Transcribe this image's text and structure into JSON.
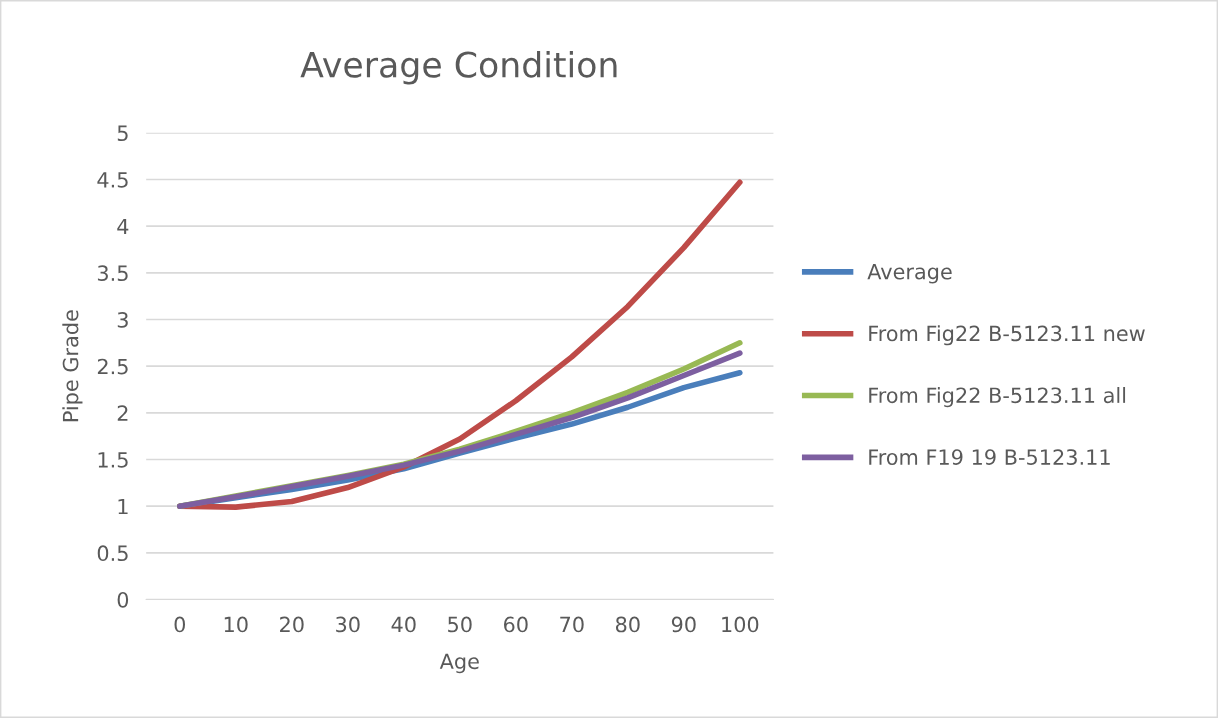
{
  "chart_data": {
    "type": "line",
    "title": "Average Condition",
    "xlabel": "Age",
    "ylabel": "Pipe Grade",
    "categories": [
      "0",
      "10",
      "20",
      "30",
      "40",
      "50",
      "60",
      "70",
      "80",
      "90",
      "100"
    ],
    "series": [
      {
        "name": "Average",
        "color": "#4a7ebb",
        "values": [
          1.0,
          1.09,
          1.18,
          1.28,
          1.4,
          1.57,
          1.73,
          1.88,
          2.06,
          2.27,
          2.43
        ]
      },
      {
        "name": "From Fig22 B-5123.11 new",
        "color": "#be4b48",
        "values": [
          1.0,
          0.99,
          1.05,
          1.2,
          1.42,
          1.72,
          2.13,
          2.6,
          3.14,
          3.77,
          4.47
        ]
      },
      {
        "name": "From Fig22 B-5123.11 all",
        "color": "#98b954",
        "values": [
          1.0,
          1.11,
          1.22,
          1.33,
          1.45,
          1.61,
          1.8,
          2.0,
          2.22,
          2.47,
          2.75
        ]
      },
      {
        "name": "From F19 19 B-5123.11",
        "color": "#7d5fa0",
        "values": [
          1.0,
          1.1,
          1.21,
          1.32,
          1.44,
          1.59,
          1.77,
          1.95,
          2.16,
          2.4,
          2.64
        ]
      }
    ],
    "ylim": [
      0,
      5
    ],
    "yticks": [
      0,
      0.5,
      1,
      1.5,
      2,
      2.5,
      3,
      3.5,
      4,
      4.5,
      5
    ],
    "grid": "y",
    "legend": "right",
    "marker": "none",
    "line_style": "solid"
  }
}
